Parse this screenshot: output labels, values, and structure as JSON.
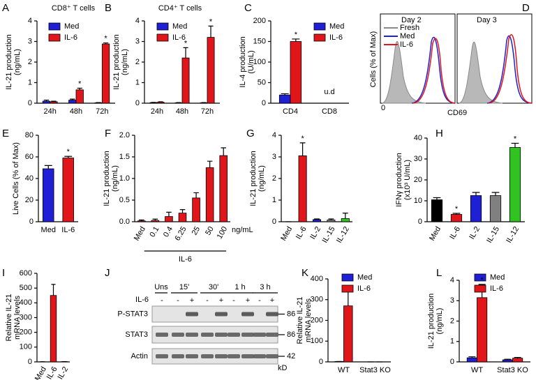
{
  "chart_data": [
    {
      "letter": "A",
      "type": "bar",
      "title": "CD8⁺ T cells",
      "ylabel": [
        "IL-21 production",
        "(ng/mL)"
      ],
      "categories": [
        "24h",
        "48h",
        "72h"
      ],
      "series": [
        {
          "name": "Med",
          "color": "#1f1fd6",
          "values": [
            0.1,
            0.15,
            0.02
          ],
          "errors": [
            0.05,
            0.05,
            0.01
          ]
        },
        {
          "name": "IL-6",
          "color": "#e0161b",
          "values": [
            0.07,
            0.65,
            2.88
          ],
          "errors": [
            0.03,
            0.08,
            0.05
          ]
        }
      ],
      "ylim": [
        0,
        4
      ],
      "yticks": [
        0,
        1,
        2,
        3,
        4
      ],
      "annotations": [
        "*",
        "*"
      ]
    },
    {
      "letter": "B",
      "type": "bar",
      "title": "CD4⁺ T cells",
      "ylabel": [
        "IL-21 production",
        "(ng/mL)"
      ],
      "categories": [
        "24h",
        "48h",
        "72h"
      ],
      "series": [
        {
          "name": "Med",
          "color": "#1f1fd6",
          "values": [
            0.03,
            0.02,
            0.02
          ],
          "errors": [
            0.01,
            0.01,
            0.01
          ]
        },
        {
          "name": "IL-6",
          "color": "#e0161b",
          "values": [
            0.05,
            2.2,
            3.2
          ],
          "errors": [
            0.02,
            0.5,
            0.55
          ]
        }
      ],
      "ylim": [
        0,
        4
      ],
      "yticks": [
        0,
        1,
        2,
        3,
        4
      ],
      "annotations": [
        "*",
        "*"
      ]
    },
    {
      "letter": "C",
      "type": "bar",
      "ylabel": [
        "IL-4 production",
        "(U/mL)"
      ],
      "categories": [
        "CD4",
        "CD8"
      ],
      "series": [
        {
          "name": "Med",
          "color": "#1f1fd6",
          "values": [
            20,
            null
          ],
          "errors": [
            3,
            null
          ]
        },
        {
          "name": "IL-6",
          "color": "#e0161b",
          "values": [
            150,
            null
          ],
          "errors": [
            6,
            null
          ]
        }
      ],
      "ylim": [
        0,
        200
      ],
      "yticks": [
        0,
        50,
        100,
        150,
        200
      ],
      "annotations": [
        "*"
      ],
      "note": "u.d"
    },
    {
      "letter": "E",
      "type": "bar",
      "ylabel": [
        "Live Cells (% of Max)"
      ],
      "categories": [
        "Med",
        "IL-6"
      ],
      "values": [
        49,
        59
      ],
      "errors": [
        3,
        1.5
      ],
      "colors": [
        "#1f1fd6",
        "#e0161b"
      ],
      "ylim": [
        0,
        80
      ],
      "yticks": [
        0,
        20,
        40,
        60,
        80
      ],
      "annotations": [
        "*"
      ]
    },
    {
      "letter": "F",
      "type": "bar",
      "ylabel": [
        "IL-21 production",
        "(ng/mL)"
      ],
      "categories": [
        "Med",
        "0.1",
        "0.4",
        "6.25",
        "25",
        "50",
        "100"
      ],
      "values": [
        0.02,
        0.03,
        0.12,
        0.2,
        0.55,
        1.25,
        1.53
      ],
      "errors": [
        0.02,
        0.03,
        0.1,
        0.08,
        0.12,
        0.15,
        0.18
      ],
      "colors": [
        "#e0161b",
        "#e0161b",
        "#e0161b",
        "#e0161b",
        "#e0161b",
        "#e0161b",
        "#e0161b"
      ],
      "ylim": [
        0,
        2
      ],
      "yticks": [
        {
          "value": 0,
          "label": "0.0"
        },
        0.5,
        {
          "value": 1,
          "label": "1.0"
        },
        1.5,
        {
          "value": 2,
          "label": "2.0"
        }
      ],
      "unit_label": "ng/mL",
      "group_label": "IL-6"
    },
    {
      "letter": "G",
      "type": "bar",
      "ylabel": [
        "IL-21 production",
        "(ng/mL)"
      ],
      "categories": [
        "Med",
        "IL-6",
        "IL-2",
        "IL-15",
        "IL-12"
      ],
      "values": [
        0,
        3.05,
        0.1,
        0.08,
        0.15
      ],
      "errors": [
        0,
        0.6,
        0.03,
        0.05,
        0.25
      ],
      "colors": [
        "#000000",
        "#e0161b",
        "#1f1fd6",
        "#808080",
        "#2fc41f"
      ],
      "ylim": [
        0,
        4
      ],
      "yticks": [
        0,
        1,
        2,
        3,
        4
      ],
      "annotations": [
        "*"
      ]
    },
    {
      "letter": "H",
      "type": "bar",
      "ylabel": [
        "IFNγ production",
        "(x10³ U/mL)"
      ],
      "categories": [
        "Med",
        "IL-6",
        "IL-2",
        "IL-15",
        "IL-12"
      ],
      "values": [
        10.5,
        3.5,
        12.5,
        12.5,
        35.5
      ],
      "errors": [
        1,
        0.5,
        1.5,
        1.5,
        2
      ],
      "colors": [
        "#000000",
        "#e0161b",
        "#1f1fd6",
        "#808080",
        "#2fc41f"
      ],
      "ylim": [
        0,
        40
      ],
      "yticks": [
        0,
        10,
        20,
        30,
        40
      ],
      "annotations": [
        "*",
        "*"
      ]
    },
    {
      "letter": "I",
      "type": "bar",
      "ylabel": [
        "Relative IL-21",
        "mRNA levels"
      ],
      "categories": [
        "Med",
        "IL-6",
        "IL-2"
      ],
      "values": [
        1,
        450,
        2
      ],
      "errors": [
        0,
        75,
        0
      ],
      "colors": [
        "#e0161b",
        "#e0161b",
        "#e0161b"
      ],
      "ylim": [
        0,
        600
      ],
      "yticks": [
        0,
        100,
        200,
        300,
        400,
        500,
        600
      ]
    },
    {
      "letter": "K",
      "type": "bar",
      "ylabel": [
        "Relative IL-21",
        "mRNA levels"
      ],
      "categories": [
        "WT",
        "Stat3 KO"
      ],
      "series": [
        {
          "name": "Med",
          "color": "#1f1fd6",
          "values": [
            2,
            0
          ],
          "errors": [
            0,
            0
          ]
        },
        {
          "name": "IL-6",
          "color": "#e0161b",
          "values": [
            270,
            0
          ],
          "errors": [
            80,
            0
          ]
        }
      ],
      "ylim": [
        0,
        400
      ],
      "yticks": [
        0,
        100,
        200,
        300,
        400
      ]
    },
    {
      "letter": "L",
      "type": "bar",
      "ylabel": [
        "IL-21 production",
        "(ng/mL)"
      ],
      "categories": [
        "WT",
        "Stat3 KO"
      ],
      "series": [
        {
          "name": "Med",
          "color": "#1f1fd6",
          "values": [
            0.2,
            0.1
          ],
          "errors": [
            0.05,
            0.03
          ]
        },
        {
          "name": "IL-6",
          "color": "#e0161b",
          "values": [
            3.15,
            0.18
          ],
          "errors": [
            0.65,
            0.04
          ]
        }
      ],
      "ylim": [
        0,
        4
      ],
      "yticks": [
        0,
        1,
        2,
        3,
        4
      ],
      "annotations": [
        "*"
      ]
    }
  ],
  "flow": {
    "letter": "D",
    "panels": [
      "Day 2",
      "Day 3"
    ],
    "legend": [
      "Fresh",
      "Med",
      "IL-6"
    ],
    "ylabel": "Cells (% of Max)",
    "xlabel": "CD69",
    "xtick": "0"
  },
  "blot": {
    "letter": "J",
    "groups": [
      "Uns",
      "15'",
      "30'",
      "1 h",
      "3 h"
    ],
    "treatment": "IL-6",
    "signs": [
      "-",
      "-",
      "+",
      "-",
      "+",
      "-",
      "+",
      "-",
      "+"
    ],
    "rows": [
      "P-STAT3",
      "STAT3",
      "Actin"
    ],
    "sizes": [
      "86",
      "86",
      "42"
    ],
    "unit": "kD"
  }
}
